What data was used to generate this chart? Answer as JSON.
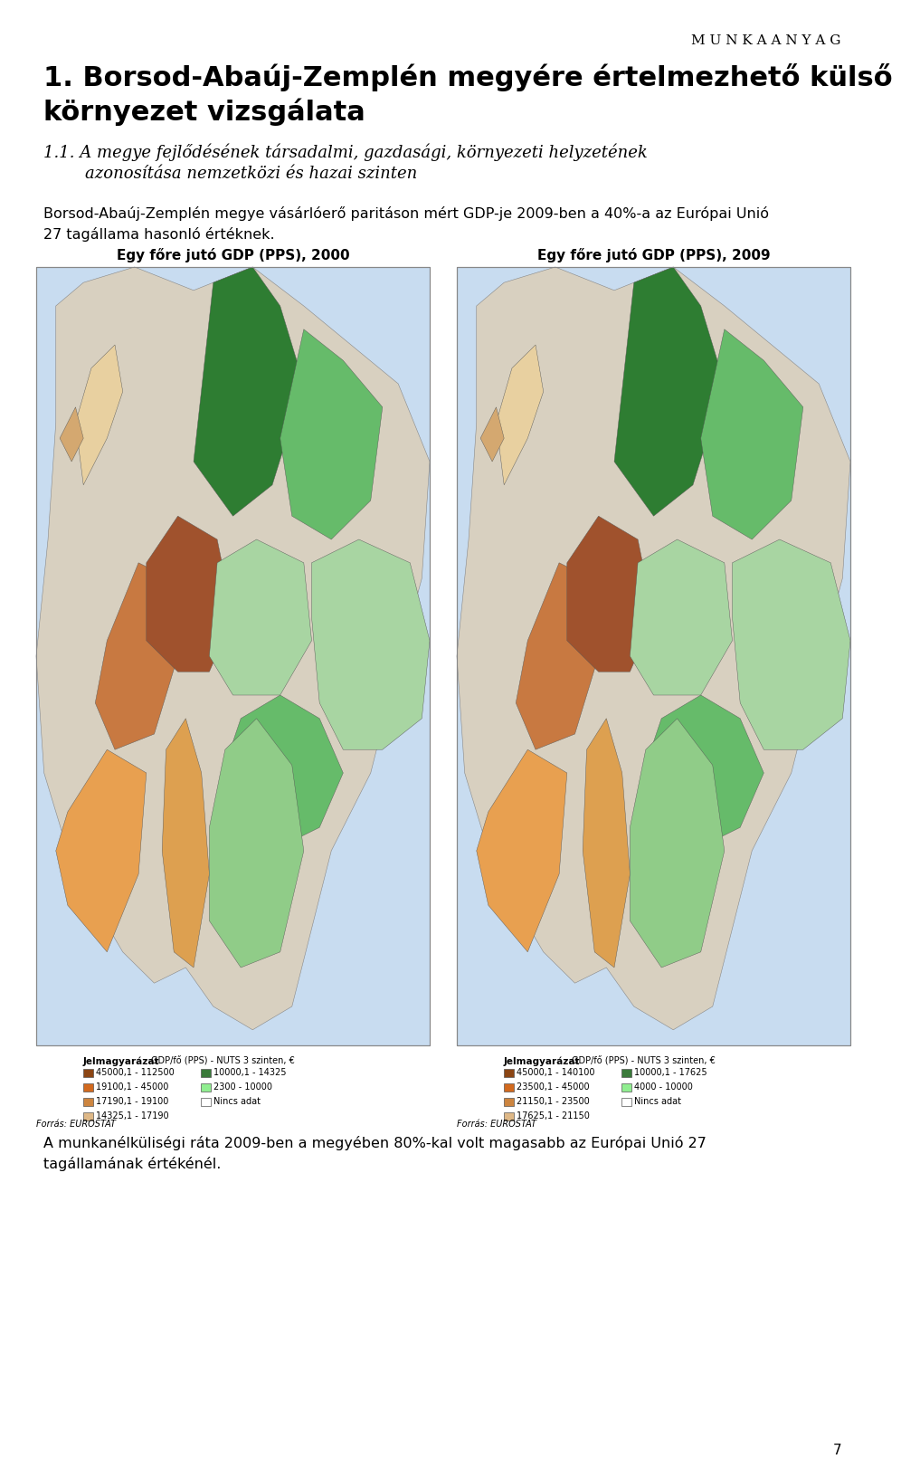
{
  "watermark": "M U N K A A N Y A G",
  "title_bold": "1. Borsod-Abaúj-Zemplén megyére értelmezhető külső\nkörnyezet vizsgálata",
  "subtitle_italic": "1.1. A megye fejlődésének társadalmi, gazdasági, környezeti helyzetének\n        azonosítása nemzetközi és hazai szinten",
  "body_text": "Borsod-Abaúj-Zemplén megye vásárlóerő paritáson mért GDP-je 2009-ben a 40%-a az Európai Unió\n27 tagállama hasonló értéknek.",
  "map_left_title": "Egy főre jutó GDP (PPS), 2000",
  "map_right_title": "Egy főre jutó GDP (PPS), 2009",
  "source_left": "Forrás: EUROSTAT",
  "source_right": "Forrás: EUROSTAT",
  "legend_left_title": "Jelmagyarázat    GDP/fő (PPS) - NUTS 3 szinten, €",
  "legend_right_title": "Jelmagyarázat    GDP/fő (PPS) - NUTS 3 szinten, €",
  "legend_left": [
    {
      "color": "#8B4513",
      "label": "45000,1 - 112500"
    },
    {
      "color": "#D2691E",
      "label": "19100,1 - 45000"
    },
    {
      "color": "#CD853F",
      "label": "17190,1 - 19100"
    },
    {
      "color": "#DEB887",
      "label": "14325,1 - 17190"
    },
    {
      "color": "#3A7A3A",
      "label": "10000,1 - 14325"
    },
    {
      "color": "#90EE90",
      "label": "2300 - 10000"
    },
    {
      "color": "#FFFFFF",
      "label": "Nincs adat"
    }
  ],
  "legend_right": [
    {
      "color": "#8B4513",
      "label": "45000,1 - 140100"
    },
    {
      "color": "#D2691E",
      "label": "23500,1 - 45000"
    },
    {
      "color": "#CD853F",
      "label": "21150,1 - 23500"
    },
    {
      "color": "#DEB887",
      "label": "17625,1 - 21150"
    },
    {
      "color": "#3A7A3A",
      "label": "10000,1 - 17625"
    },
    {
      "color": "#90EE90",
      "label": "4000 - 10000"
    },
    {
      "color": "#FFFFFF",
      "label": "Nincs adat"
    }
  ],
  "footer_text": "A munkanélküliségi ráta 2009-ben a megyében 80%-kal volt magasabb az Európai Unió 27\ntagállamának értékénél.",
  "page_number": "7",
  "bg_color": "#FFFFFF",
  "text_color": "#000000",
  "map_border_color": "#AAAAAA",
  "map_bg_color": "#E8E8E8"
}
